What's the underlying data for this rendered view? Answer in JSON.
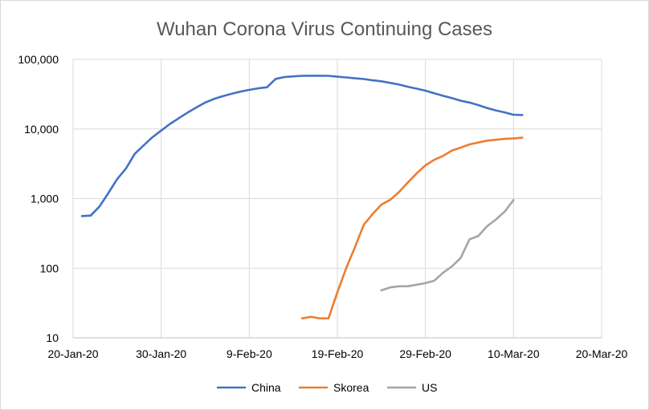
{
  "chart_data": {
    "type": "line",
    "title": "Wuhan Corona Virus Continuing Cases",
    "xlabel": "",
    "ylabel": "",
    "yscale": "log",
    "ylim": [
      10,
      100000
    ],
    "xlim": [
      "2020-01-20",
      "2020-03-20"
    ],
    "grid": true,
    "legend_position": "bottom",
    "x_ticks": [
      "20-Jan-20",
      "30-Jan-20",
      "9-Feb-20",
      "19-Feb-20",
      "29-Feb-20",
      "10-Mar-20",
      "20-Mar-20"
    ],
    "y_ticks": [
      "10",
      "100",
      "1,000",
      "10,000",
      "100,000"
    ],
    "y_tick_values": [
      10,
      100,
      1000,
      10000,
      100000
    ],
    "series": [
      {
        "name": "China",
        "color": "#4472C4",
        "points": [
          [
            "2020-01-21",
            560
          ],
          [
            "2020-01-22",
            570
          ],
          [
            "2020-01-23",
            770
          ],
          [
            "2020-01-24",
            1200
          ],
          [
            "2020-01-25",
            1900
          ],
          [
            "2020-01-26",
            2700
          ],
          [
            "2020-01-27",
            4400
          ],
          [
            "2020-01-28",
            5800
          ],
          [
            "2020-01-29",
            7600
          ],
          [
            "2020-01-30",
            9500
          ],
          [
            "2020-01-31",
            11800
          ],
          [
            "2020-02-01",
            14300
          ],
          [
            "2020-02-02",
            17200
          ],
          [
            "2020-02-03",
            20400
          ],
          [
            "2020-02-04",
            24000
          ],
          [
            "2020-02-05",
            27000
          ],
          [
            "2020-02-06",
            29600
          ],
          [
            "2020-02-07",
            32000
          ],
          [
            "2020-02-08",
            34400
          ],
          [
            "2020-02-09",
            36500
          ],
          [
            "2020-02-10",
            38400
          ],
          [
            "2020-02-11",
            39700
          ],
          [
            "2020-02-12",
            52500
          ],
          [
            "2020-02-13",
            55700
          ],
          [
            "2020-02-14",
            57000
          ],
          [
            "2020-02-15",
            58000
          ],
          [
            "2020-02-16",
            58200
          ],
          [
            "2020-02-17",
            58200
          ],
          [
            "2020-02-18",
            58000
          ],
          [
            "2020-02-19",
            56300
          ],
          [
            "2020-02-20",
            55000
          ],
          [
            "2020-02-21",
            53500
          ],
          [
            "2020-02-22",
            52200
          ],
          [
            "2020-02-23",
            50000
          ],
          [
            "2020-02-24",
            48500
          ],
          [
            "2020-02-25",
            46000
          ],
          [
            "2020-02-26",
            43500
          ],
          [
            "2020-02-27",
            40500
          ],
          [
            "2020-02-28",
            38000
          ],
          [
            "2020-02-29",
            35500
          ],
          [
            "2020-03-01",
            32500
          ],
          [
            "2020-03-02",
            30000
          ],
          [
            "2020-03-03",
            27800
          ],
          [
            "2020-03-04",
            25500
          ],
          [
            "2020-03-05",
            24000
          ],
          [
            "2020-03-06",
            22000
          ],
          [
            "2020-03-07",
            20000
          ],
          [
            "2020-03-08",
            18500
          ],
          [
            "2020-03-09",
            17300
          ],
          [
            "2020-03-10",
            16000
          ],
          [
            "2020-03-11",
            15900
          ]
        ]
      },
      {
        "name": "Skorea",
        "color": "#ED7D31",
        "points": [
          [
            "2020-02-15",
            19
          ],
          [
            "2020-02-16",
            20
          ],
          [
            "2020-02-17",
            19
          ],
          [
            "2020-02-18",
            19
          ],
          [
            "2020-02-19",
            45
          ],
          [
            "2020-02-20",
            100
          ],
          [
            "2020-02-21",
            200
          ],
          [
            "2020-02-22",
            420
          ],
          [
            "2020-02-23",
            600
          ],
          [
            "2020-02-24",
            820
          ],
          [
            "2020-02-25",
            960
          ],
          [
            "2020-02-26",
            1240
          ],
          [
            "2020-02-27",
            1700
          ],
          [
            "2020-02-28",
            2300
          ],
          [
            "2020-02-29",
            3000
          ],
          [
            "2020-03-01",
            3600
          ],
          [
            "2020-03-02",
            4100
          ],
          [
            "2020-03-03",
            4900
          ],
          [
            "2020-03-04",
            5400
          ],
          [
            "2020-03-05",
            6000
          ],
          [
            "2020-03-06",
            6400
          ],
          [
            "2020-03-07",
            6800
          ],
          [
            "2020-03-08",
            7000
          ],
          [
            "2020-03-09",
            7200
          ],
          [
            "2020-03-10",
            7300
          ],
          [
            "2020-03-11",
            7500
          ]
        ]
      },
      {
        "name": "US",
        "color": "#A5A5A5",
        "points": [
          [
            "2020-02-24",
            48
          ],
          [
            "2020-02-25",
            53
          ],
          [
            "2020-02-26",
            55
          ],
          [
            "2020-02-27",
            55
          ],
          [
            "2020-02-28",
            58
          ],
          [
            "2020-02-29",
            61
          ],
          [
            "2020-03-01",
            66
          ],
          [
            "2020-03-02",
            86
          ],
          [
            "2020-03-03",
            106
          ],
          [
            "2020-03-04",
            140
          ],
          [
            "2020-03-05",
            260
          ],
          [
            "2020-03-06",
            290
          ],
          [
            "2020-03-07",
            400
          ],
          [
            "2020-03-08",
            500
          ],
          [
            "2020-03-09",
            650
          ],
          [
            "2020-03-10",
            950
          ]
        ]
      }
    ]
  }
}
